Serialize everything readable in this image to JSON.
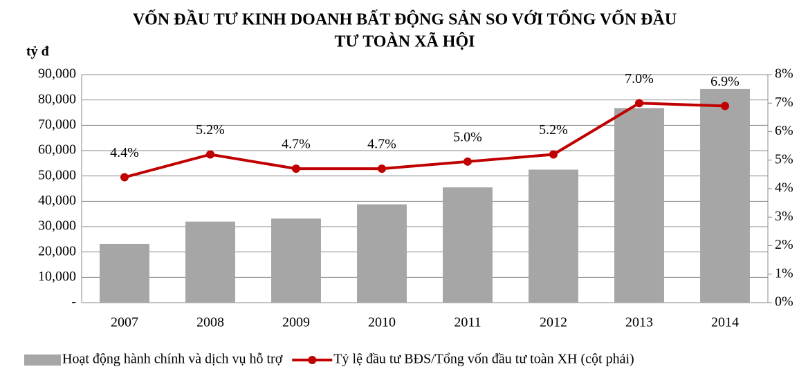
{
  "chart_data": {
    "type": "bar_line",
    "title": [
      "VỐN ĐẦU TƯ KINH DOANH BẤT ĐỘNG SẢN SO VỚI TỔNG VỐN ĐẦU",
      "TƯ TOÀN XÃ HỘI"
    ],
    "y_label": "tỷ đ",
    "categories": [
      "2007",
      "2008",
      "2009",
      "2010",
      "2011",
      "2012",
      "2013",
      "2014"
    ],
    "series": [
      {
        "name": "Hoạt động hành chính và dịch vụ hỗ trợ",
        "type": "bar",
        "color": "#a6a6a6",
        "values": [
          23200,
          32000,
          33200,
          38800,
          45500,
          52500,
          76800,
          84300
        ]
      },
      {
        "name": "Tỷ lệ đầu tư BĐS/Tổng vốn đầu tư toàn XH (cột phải)",
        "type": "line",
        "color": "#c00000",
        "axis": "y2",
        "values": [
          4.4,
          5.2,
          4.7,
          4.7,
          4.95,
          5.2,
          7.0,
          6.9
        ],
        "value_labels": [
          "4.4%",
          "5.2%",
          "4.7%",
          "4.7%",
          "5.0%",
          "5.2%",
          "7.0%",
          "6.9%"
        ]
      }
    ],
    "ylim": [
      0,
      90000
    ],
    "yticks": [
      {
        "value": 0,
        "label": "-"
      },
      {
        "value": 10000,
        "label": "10,000"
      },
      {
        "value": 20000,
        "label": "20,000"
      },
      {
        "value": 30000,
        "label": "30,000"
      },
      {
        "value": 40000,
        "label": "40,000"
      },
      {
        "value": 50000,
        "label": "50,000"
      },
      {
        "value": 60000,
        "label": "60,000"
      },
      {
        "value": 70000,
        "label": "70,000"
      },
      {
        "value": 80000,
        "label": "80,000"
      },
      {
        "value": 90000,
        "label": "90,000"
      }
    ],
    "y2lim": [
      0,
      8
    ],
    "y2ticks": [
      {
        "value": 0,
        "label": "0%"
      },
      {
        "value": 1,
        "label": "1%"
      },
      {
        "value": 2,
        "label": "2%"
      },
      {
        "value": 3,
        "label": "3%"
      },
      {
        "value": 4,
        "label": "4%"
      },
      {
        "value": 5,
        "label": "5%"
      },
      {
        "value": 6,
        "label": "6%"
      },
      {
        "value": 7,
        "label": "7%"
      },
      {
        "value": 8,
        "label": "8%"
      }
    ],
    "grid": true,
    "legend": "bottom"
  }
}
